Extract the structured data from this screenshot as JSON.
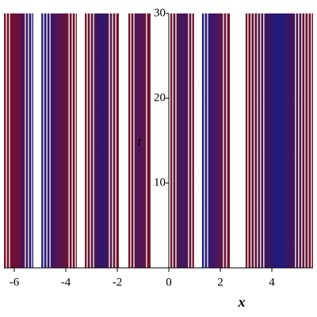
{
  "chart_data": {
    "type": "density",
    "x_label": "x",
    "y_label": "t",
    "xlim": [
      -6.4,
      5.6
    ],
    "ylim": [
      0,
      30
    ],
    "xticks": [
      -6,
      -4,
      -2,
      0,
      2,
      4
    ],
    "yticks": [
      10,
      20,
      30
    ],
    "stripes": [
      {
        "x0": -6.4,
        "x1": -5.26,
        "colors": [
          "#7a1020",
          "#6a1040",
          "#1a1a80"
        ]
      },
      {
        "x0": -4.95,
        "x1": -3.57,
        "colors": [
          "#1a1a80",
          "#5a1450",
          "#7a1020"
        ]
      },
      {
        "x0": -3.26,
        "x1": -1.94,
        "colors": [
          "#7a1020",
          "#2a1870",
          "#7a1020"
        ]
      },
      {
        "x0": -1.57,
        "x1": -0.71,
        "colors": [
          "#7a1020",
          "#4a1660",
          "#7a1020"
        ]
      },
      {
        "x0": 0.06,
        "x1": 0.98,
        "colors": [
          "#7a1020",
          "#3a1868",
          "#7a1020"
        ]
      },
      {
        "x0": 1.29,
        "x1": 2.37,
        "colors": [
          "#1a1a80",
          "#4a1660",
          "#7a1020"
        ]
      },
      {
        "x0": 2.98,
        "x1": 5.6,
        "colors": [
          "#7a1020",
          "#1a1a80",
          "#7a1020"
        ]
      }
    ]
  }
}
